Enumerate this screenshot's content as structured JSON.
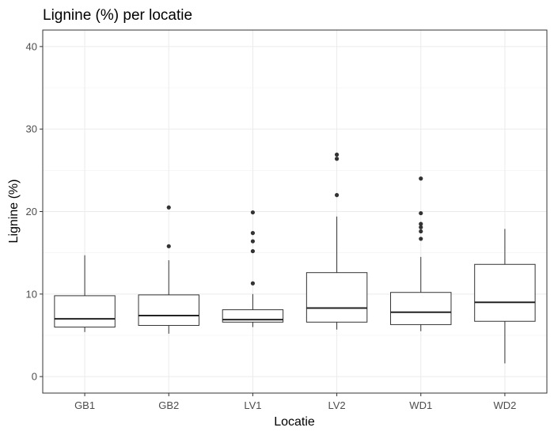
{
  "chart_data": {
    "type": "boxplot",
    "title": "Lignine (%) per locatie",
    "xlabel": "Locatie",
    "ylabel": "Lignine (%)",
    "ylim": [
      -2,
      42
    ],
    "yticks": [
      0,
      10,
      20,
      30,
      40
    ],
    "grid": true,
    "categories": [
      "GB1",
      "GB2",
      "LV1",
      "LV2",
      "WD1",
      "WD2"
    ],
    "boxes": [
      {
        "category": "GB1",
        "min": 5.4,
        "q1": 6.0,
        "median": 7.0,
        "q3": 9.8,
        "max": 14.7,
        "outliers": []
      },
      {
        "category": "GB2",
        "min": 5.2,
        "q1": 6.2,
        "median": 7.4,
        "q3": 9.9,
        "max": 14.1,
        "outliers": [
          15.8,
          20.5
        ]
      },
      {
        "category": "LV1",
        "min": 6.0,
        "q1": 6.6,
        "median": 6.9,
        "q3": 8.1,
        "max": 10.0,
        "outliers": [
          11.3,
          15.2,
          16.4,
          17.4,
          19.9
        ]
      },
      {
        "category": "LV2",
        "min": 5.7,
        "q1": 6.6,
        "median": 8.3,
        "q3": 12.6,
        "max": 19.4,
        "outliers": [
          22.0,
          26.4,
          26.9
        ]
      },
      {
        "category": "WD1",
        "min": 5.5,
        "q1": 6.3,
        "median": 7.8,
        "q3": 10.2,
        "max": 14.5,
        "outliers": [
          16.7,
          17.6,
          18.1,
          18.5,
          19.8,
          24.0
        ]
      },
      {
        "category": "WD2",
        "min": 1.6,
        "q1": 6.7,
        "median": 9.0,
        "q3": 13.6,
        "max": 17.9,
        "outliers": []
      }
    ]
  }
}
